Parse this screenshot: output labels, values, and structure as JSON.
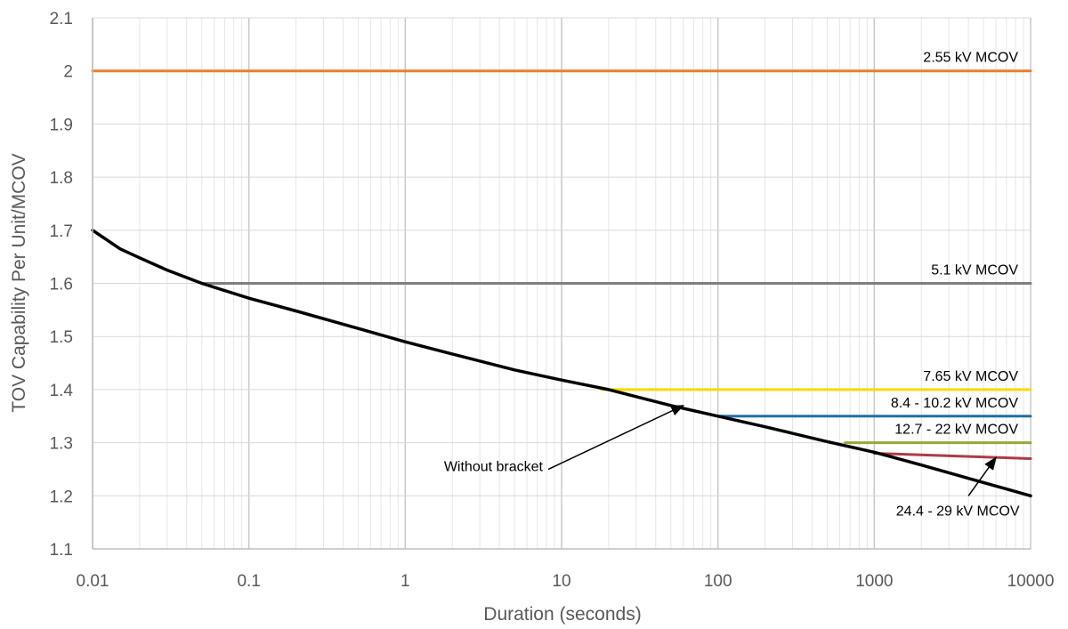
{
  "chart_data": {
    "type": "line",
    "x_scale": "log",
    "xlabel": "Duration (seconds)",
    "ylabel": "TOV Capability Per Unit/MCOV",
    "xlim": [
      0.01,
      10000
    ],
    "ylim": [
      1.1,
      2.1
    ],
    "x_ticks": [
      {
        "value": 0.01,
        "label": "0.01"
      },
      {
        "value": 0.1,
        "label": "0.1"
      },
      {
        "value": 1,
        "label": "1"
      },
      {
        "value": 10,
        "label": "10"
      },
      {
        "value": 100,
        "label": "100"
      },
      {
        "value": 1000,
        "label": "1000"
      },
      {
        "value": 10000,
        "label": "10000"
      }
    ],
    "y_ticks": [
      {
        "value": 1.1,
        "label": "1.1"
      },
      {
        "value": 1.2,
        "label": "1.2"
      },
      {
        "value": 1.3,
        "label": "1.3"
      },
      {
        "value": 1.4,
        "label": "1.4"
      },
      {
        "value": 1.5,
        "label": "1.5"
      },
      {
        "value": 1.6,
        "label": "1.6"
      },
      {
        "value": 1.7,
        "label": "1.7"
      },
      {
        "value": 1.8,
        "label": "1.8"
      },
      {
        "value": 1.9,
        "label": "1.9"
      },
      {
        "value": 2.0,
        "label": "2"
      },
      {
        "value": 2.1,
        "label": "2.1"
      }
    ],
    "grid": "major and minor (log)",
    "legend": "none",
    "series": [
      {
        "name": "Without bracket",
        "color": "#000000",
        "x": [
          0.01,
          0.015,
          0.02,
          0.03,
          0.05,
          0.1,
          0.2,
          0.5,
          1,
          2,
          5,
          10,
          20,
          50,
          100,
          200,
          500,
          1000,
          2000,
          5000,
          10000
        ],
        "y": [
          1.7,
          1.665,
          1.648,
          1.625,
          1.6,
          1.572,
          1.548,
          1.515,
          1.49,
          1.467,
          1.437,
          1.418,
          1.4,
          1.37,
          1.35,
          1.33,
          1.302,
          1.282,
          1.258,
          1.225,
          1.2
        ]
      },
      {
        "name": "2.55 kV MCOV",
        "color": "#ED7D31",
        "x": [
          0.01,
          10000
        ],
        "y": [
          2.0,
          2.0
        ]
      },
      {
        "name": "5.1 kV MCOV",
        "color": "#7F7F7F",
        "x": [
          0.05,
          10000
        ],
        "y": [
          1.6,
          1.6
        ]
      },
      {
        "name": "7.65 kV MCOV",
        "color": "#FFD700",
        "x": [
          18,
          10000
        ],
        "y": [
          1.4,
          1.4
        ]
      },
      {
        "name": "8.4 - 10.2 kV MCOV",
        "color": "#1F6FA8",
        "x": [
          100,
          10000
        ],
        "y": [
          1.35,
          1.35
        ]
      },
      {
        "name": "12.7 - 22 kV MCOV",
        "color": "#9AA53A",
        "x": [
          650,
          10000
        ],
        "y": [
          1.3,
          1.3
        ]
      },
      {
        "name": "24.4 - 29 kV MCOV",
        "color": "#B03A48",
        "x": [
          1000,
          10000
        ],
        "y": [
          1.28,
          1.27
        ]
      }
    ],
    "annotations": [
      {
        "text": "2.55 kV MCOV",
        "x": 10000,
        "y": 2.0,
        "position": "above-right"
      },
      {
        "text": "5.1 kV MCOV",
        "x": 10000,
        "y": 1.6,
        "position": "above-right"
      },
      {
        "text": "7.65 kV MCOV",
        "x": 10000,
        "y": 1.4,
        "position": "above-right"
      },
      {
        "text": "8.4 - 10.2 kV MCOV",
        "x": 10000,
        "y": 1.35,
        "position": "above-right"
      },
      {
        "text": "12.7 - 22 kV MCOV",
        "x": 10000,
        "y": 1.3,
        "position": "above-right"
      },
      {
        "text": "24.4 - 29 kV MCOV",
        "x": 3000,
        "y": 1.22,
        "position": "below",
        "arrow_to": {
          "x": 6000,
          "y": 1.272
        }
      },
      {
        "text": "Without bracket",
        "x": 8,
        "y": 1.28,
        "position": "left",
        "arrow_to": {
          "x": 60,
          "y": 1.37
        }
      }
    ]
  }
}
